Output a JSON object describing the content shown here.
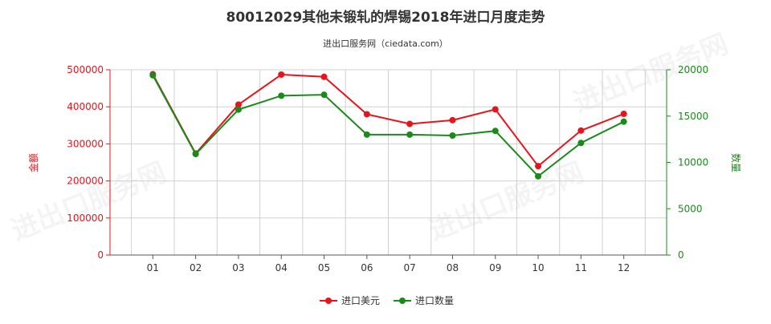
{
  "title": "80012029其他未锻轧的焊锡2018年进口月度走势",
  "subtitle": "进出口服务网（ciedata.com）",
  "watermark": "进出口服务网",
  "colors": {
    "value_series": "#e8141b",
    "quantity_series": "#1a8a1a",
    "left_axis": "#e8141b",
    "right_axis": "#1a8a1a",
    "grid": "#d0d0d0",
    "axis_line": "#555555"
  },
  "chart_data": {
    "type": "line",
    "categories": [
      "01",
      "02",
      "03",
      "04",
      "05",
      "06",
      "07",
      "08",
      "09",
      "10",
      "11",
      "12"
    ],
    "y_left": {
      "label": "金额",
      "range": [
        0,
        500000
      ],
      "ticks": [
        0,
        100000,
        200000,
        300000,
        400000,
        500000
      ],
      "tick_labels": [
        "0",
        "100000",
        "200000",
        "300000",
        "400000",
        "500000"
      ]
    },
    "y_right": {
      "label": "数量",
      "range": [
        0,
        20000
      ],
      "ticks": [
        0,
        5000,
        10000,
        15000,
        20000
      ],
      "tick_labels": [
        "0",
        "5000",
        "10000",
        "15000",
        "20000"
      ]
    },
    "grid": true,
    "legend_position": "bottom-center",
    "series": [
      {
        "name": "进口美元",
        "axis": "left",
        "values": [
          488000,
          274000,
          406000,
          487000,
          481000,
          380000,
          354000,
          364000,
          393000,
          240000,
          336000,
          381000
        ]
      },
      {
        "name": "进口数量",
        "axis": "right",
        "values": [
          19400,
          10900,
          15700,
          17200,
          17300,
          13000,
          13000,
          12900,
          13400,
          8500,
          12100,
          14400
        ]
      }
    ]
  }
}
